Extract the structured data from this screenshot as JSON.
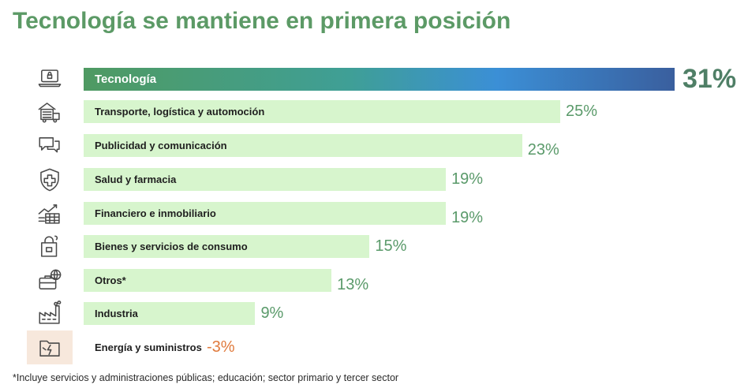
{
  "title": "Tecnología se mantiene en primera posición",
  "footnote": "*Incluye servicios y administraciones públicas; educación; sector primario y tercer sector",
  "chart_data": {
    "type": "bar",
    "orientation": "horizontal",
    "title": "Tecnología se mantiene en primera posición",
    "categories": [
      "Tecnología",
      "Transporte, logística y automoción",
      "Publicidad y comunicación",
      "Salud y farmacia",
      "Financiero e inmobiliario",
      "Bienes y servicios de consumo",
      "Otros*",
      "Industria",
      "Energía y suministros"
    ],
    "values": [
      31,
      25,
      23,
      19,
      19,
      15,
      13,
      9,
      -3
    ],
    "value_labels": [
      "31%",
      "25%",
      "23%",
      "19%",
      "19%",
      "15%",
      "13%",
      "9%",
      "-3%"
    ],
    "icons": [
      "laptop-lock-icon",
      "truck-warehouse-icon",
      "chat-bubbles-icon",
      "medical-shield-icon",
      "financial-chart-building-icon",
      "shopping-bag-lock-icon",
      "briefcase-globe-icon",
      "factory-icon",
      "energy-folder-icon"
    ],
    "units": "%",
    "xlim": [
      0,
      31
    ],
    "colors": {
      "highlight_gradient": [
        "#4f9a62",
        "#3b8fd6",
        "#3a5f9e"
      ],
      "bar": "#d7f5cd",
      "label_positive": "#5a9a6a",
      "label_highlight": "#4f7f66",
      "label_negative": "#e07a3c",
      "negative_icon_bg": "#f7e8dc",
      "title": "#5c9a66"
    }
  }
}
